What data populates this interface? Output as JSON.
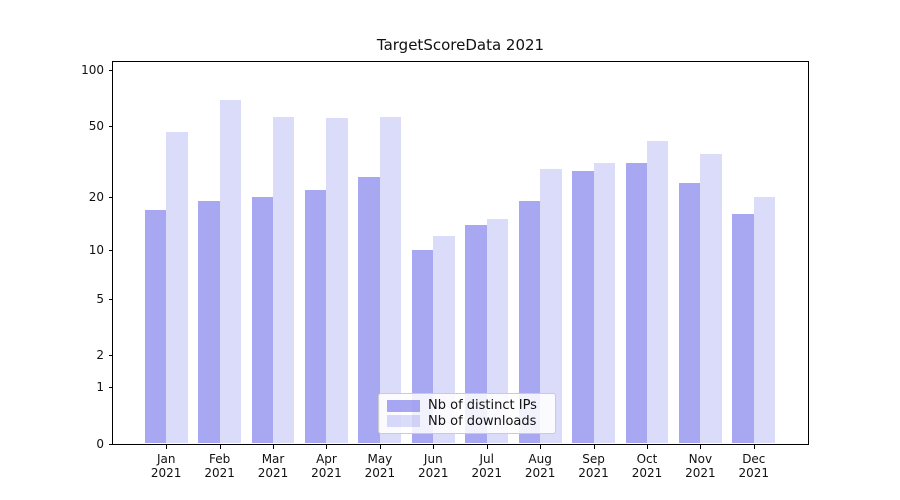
{
  "title": "TargetScoreData 2021",
  "chart_data": {
    "type": "bar",
    "title": "TargetScoreData 2021",
    "categories": [
      "Jan",
      "Feb",
      "Mar",
      "Apr",
      "May",
      "Jun",
      "Jul",
      "Aug",
      "Sep",
      "Oct",
      "Nov",
      "Dec"
    ],
    "year_label": "2021",
    "series": [
      {
        "name": "Nb of distinct IPs",
        "values": [
          17,
          19,
          20,
          22,
          26,
          10,
          14,
          19,
          28,
          31,
          24,
          16
        ],
        "color": "#a8a8f0",
        "rgba": "rgba(122,122,235,0.65)"
      },
      {
        "name": "Nb of downloads",
        "values": [
          46,
          69,
          56,
          55,
          56,
          12,
          15,
          29,
          31,
          41,
          35,
          20
        ],
        "color": "#dbdbfa",
        "rgba": "rgba(122,122,235,0.27)"
      }
    ],
    "yscale": "log1p",
    "yticks": [
      0,
      1,
      2,
      5,
      10,
      20,
      50,
      100
    ],
    "ylim": [
      0,
      111
    ],
    "grid": {
      "major": [
        1,
        10,
        100
      ],
      "minor": [
        2,
        3,
        4,
        5,
        6,
        7,
        8,
        9,
        20,
        30,
        40,
        50,
        60,
        70,
        80,
        90
      ]
    },
    "legend_position": "lower center",
    "colors": {
      "major_grid": "#b0b0b0",
      "minor_grid": "#ececec",
      "axis": "#000000",
      "text": "#111111"
    }
  }
}
